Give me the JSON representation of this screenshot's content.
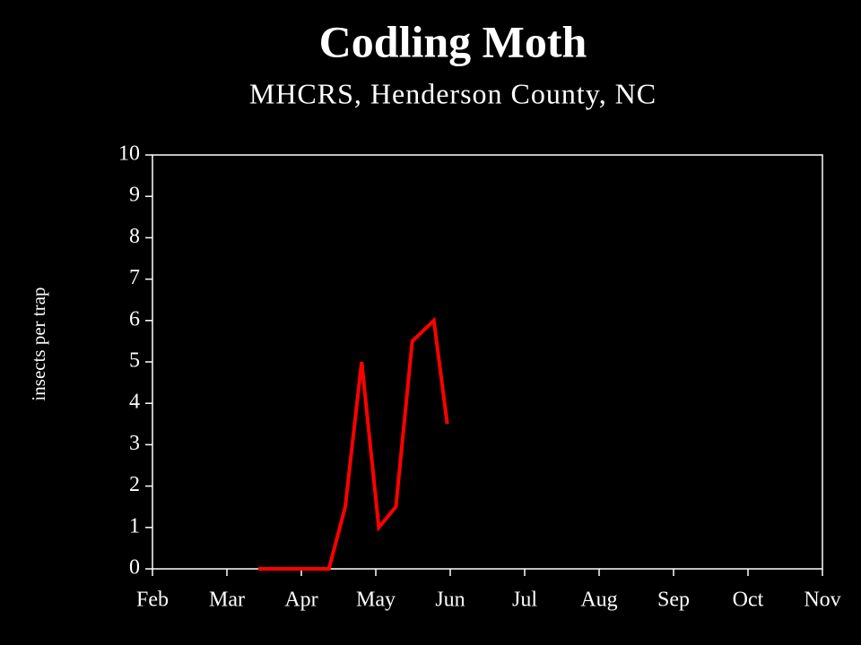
{
  "chart_data": {
    "type": "line",
    "title": "Codling Moth",
    "subtitle": "MHCRS, Henderson County, NC",
    "y_label": "insects per trap",
    "x": [
      1.42,
      1.66,
      1.9,
      2.13,
      2.37,
      2.59,
      2.81,
      3.04,
      3.27,
      3.49,
      3.78,
      3.96
    ],
    "series": [
      {
        "color": "#ff0000",
        "values": [
          0,
          0,
          0,
          0,
          0,
          1.5,
          5,
          1,
          1.5,
          5.5,
          6,
          3.5
        ]
      }
    ],
    "xlim": [
      0,
      9
    ],
    "xticks": [
      {
        "value": 0,
        "label": "Feb"
      },
      {
        "value": 1,
        "label": "Mar"
      },
      {
        "value": 2,
        "label": "Apr"
      },
      {
        "value": 3,
        "label": "May"
      },
      {
        "value": 4,
        "label": "Jun"
      },
      {
        "value": 5,
        "label": "Jul"
      },
      {
        "value": 6,
        "label": "Aug"
      },
      {
        "value": 7,
        "label": "Sep"
      },
      {
        "value": 8,
        "label": "Oct"
      },
      {
        "value": 9,
        "label": "Nov"
      }
    ],
    "ylim": [
      0,
      10
    ],
    "yticks": [
      0,
      1,
      2,
      3,
      4,
      5,
      6,
      7,
      8,
      9,
      10
    ]
  }
}
